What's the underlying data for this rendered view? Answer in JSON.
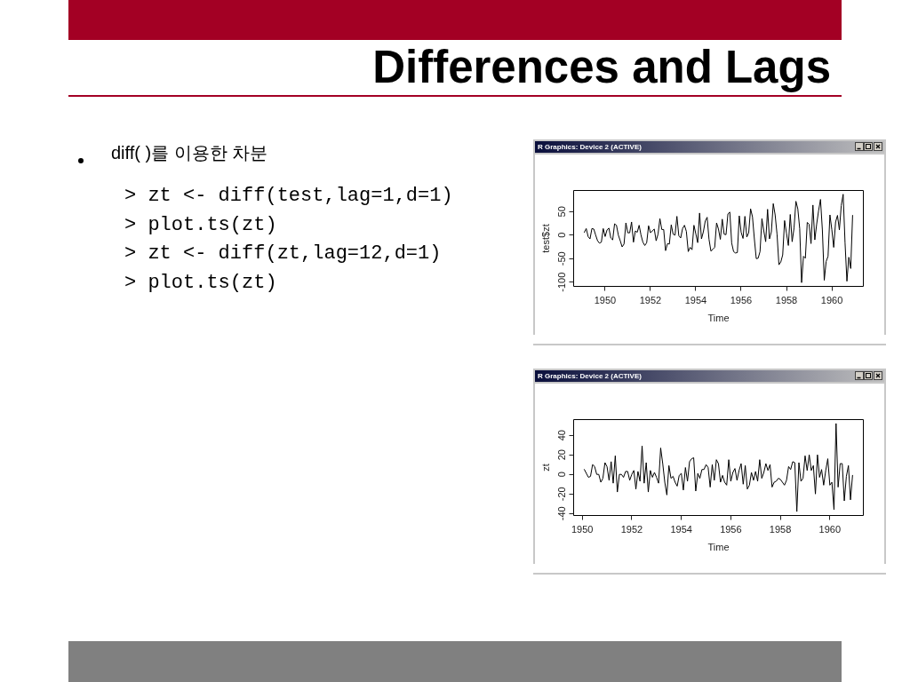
{
  "chart_data": [
    {
      "type": "other",
      "title": "Differences and Lags",
      "annotations": [
        "diff( )를 이용한 차분",
        "> zt <- diff(test,lag=1,d=1)",
        "> plot.ts(zt)",
        "> zt <- diff(zt,lag=12,d=1)",
        "> plot.ts(zt)"
      ]
    },
    {
      "type": "line",
      "title": "R Graphics: Device 2 (ACTIVE)",
      "xlabel": "Time",
      "ylabel": "test$zt",
      "color": "#000000",
      "marker": "none",
      "line_style": "solid",
      "xlim": [
        "1948-08-11",
        "1961-05-22"
      ],
      "ylim": [
        -109,
        95
      ],
      "xticks": [
        "1950",
        "1952",
        "1954",
        "1956",
        "1958",
        "1960"
      ],
      "yticks": [
        -100,
        -50,
        0,
        50
      ],
      "x": [
        "1949-02",
        "1949-03",
        "1949-04",
        "1949-05",
        "1949-06",
        "1949-07",
        "1949-08",
        "1949-09",
        "1949-10",
        "1949-11",
        "1949-12",
        "1950-01",
        "1950-02",
        "1950-03",
        "1950-04",
        "1950-05",
        "1950-06",
        "1950-07",
        "1950-08",
        "1950-09",
        "1950-10",
        "1950-11",
        "1950-12",
        "1951-01",
        "1951-02",
        "1951-03",
        "1951-04",
        "1951-05",
        "1951-06",
        "1951-07",
        "1951-08",
        "1951-09",
        "1951-10",
        "1951-11",
        "1951-12",
        "1952-01",
        "1952-02",
        "1952-03",
        "1952-04",
        "1952-05",
        "1952-06",
        "1952-07",
        "1952-08",
        "1952-09",
        "1952-10",
        "1952-11",
        "1952-12",
        "1953-01",
        "1953-02",
        "1953-03",
        "1953-04",
        "1953-05",
        "1953-06",
        "1953-07",
        "1953-08",
        "1953-09",
        "1953-10",
        "1953-11",
        "1953-12",
        "1954-01",
        "1954-02",
        "1954-03",
        "1954-04",
        "1954-05",
        "1954-06",
        "1954-07",
        "1954-08",
        "1954-09",
        "1954-10",
        "1954-11",
        "1954-12",
        "1955-01",
        "1955-02",
        "1955-03",
        "1955-04",
        "1955-05",
        "1955-06",
        "1955-07",
        "1955-08",
        "1955-09",
        "1955-10",
        "1955-11",
        "1955-12",
        "1956-01",
        "1956-02",
        "1956-03",
        "1956-04",
        "1956-05",
        "1956-06",
        "1956-07",
        "1956-08",
        "1956-09",
        "1956-10",
        "1956-11",
        "1956-12",
        "1957-01",
        "1957-02",
        "1957-03",
        "1957-04",
        "1957-05",
        "1957-06",
        "1957-07",
        "1957-08",
        "1957-09",
        "1957-10",
        "1957-11",
        "1957-12",
        "1958-01",
        "1958-02",
        "1958-03",
        "1958-04",
        "1958-05",
        "1958-06",
        "1958-07",
        "1958-08",
        "1958-09",
        "1958-10",
        "1958-11",
        "1958-12",
        "1959-01",
        "1959-02",
        "1959-03",
        "1959-04",
        "1959-05",
        "1959-06",
        "1959-07",
        "1959-08",
        "1959-09",
        "1959-10",
        "1959-11",
        "1959-12",
        "1960-01",
        "1960-02",
        "1960-03",
        "1960-04",
        "1960-05",
        "1960-06",
        "1960-07",
        "1960-08",
        "1960-09",
        "1960-10",
        "1960-11",
        "1960-12"
      ],
      "values": [
        6,
        14,
        -3,
        -8,
        14,
        13,
        0,
        -12,
        -17,
        -15,
        14,
        -3,
        11,
        15,
        -6,
        -10,
        24,
        21,
        0,
        -12,
        -25,
        -19,
        26,
        5,
        5,
        28,
        -15,
        9,
        6,
        21,
        0,
        -15,
        -22,
        -16,
        20,
        5,
        9,
        13,
        -12,
        2,
        35,
        12,
        12,
        -33,
        -18,
        -19,
        22,
        2,
        0,
        40,
        -1,
        -6,
        14,
        21,
        8,
        -35,
        -26,
        -31,
        21,
        3,
        -16,
        47,
        -8,
        7,
        30,
        38,
        -9,
        -34,
        -30,
        -26,
        26,
        13,
        -9,
        34,
        2,
        1,
        45,
        49,
        -17,
        -35,
        -38,
        -37,
        41,
        6,
        -7,
        40,
        -4,
        5,
        56,
        39,
        -8,
        -50,
        -49,
        -35,
        35,
        9,
        -14,
        55,
        -8,
        7,
        67,
        43,
        2,
        -63,
        -57,
        -42,
        31,
        4,
        -22,
        44,
        -14,
        15,
        72,
        56,
        14,
        -101,
        -45,
        -49,
        27,
        23,
        -18,
        64,
        -10,
        24,
        52,
        76,
        11,
        -96,
        -56,
        -45,
        43,
        12,
        -26,
        28,
        42,
        11,
        63,
        87,
        -16,
        -98,
        -47,
        -71,
        42
      ]
    },
    {
      "type": "line",
      "title": "R Graphics: Device 2 (ACTIVE)",
      "xlabel": "Time",
      "ylabel": "zt",
      "color": "#000000",
      "marker": "none",
      "line_style": "solid",
      "xlim": [
        "1949-08-26",
        "1961-05-08"
      ],
      "ylim": [
        -42,
        56
      ],
      "xticks": [
        "1950",
        "1952",
        "1954",
        "1956",
        "1958",
        "1960"
      ],
      "yticks": [
        -40,
        -20,
        0,
        20,
        40
      ],
      "x": [
        "1950-02",
        "1950-03",
        "1950-04",
        "1950-05",
        "1950-06",
        "1950-07",
        "1950-08",
        "1950-09",
        "1950-10",
        "1950-11",
        "1950-12",
        "1951-01",
        "1951-02",
        "1951-03",
        "1951-04",
        "1951-05",
        "1951-06",
        "1951-07",
        "1951-08",
        "1951-09",
        "1951-10",
        "1951-11",
        "1951-12",
        "1952-01",
        "1952-02",
        "1952-03",
        "1952-04",
        "1952-05",
        "1952-06",
        "1952-07",
        "1952-08",
        "1952-09",
        "1952-10",
        "1952-11",
        "1952-12",
        "1953-01",
        "1953-02",
        "1953-03",
        "1953-04",
        "1953-05",
        "1953-06",
        "1953-07",
        "1953-08",
        "1953-09",
        "1953-10",
        "1953-11",
        "1953-12",
        "1954-01",
        "1954-02",
        "1954-03",
        "1954-04",
        "1954-05",
        "1954-06",
        "1954-07",
        "1954-08",
        "1954-09",
        "1954-10",
        "1954-11",
        "1954-12",
        "1955-01",
        "1955-02",
        "1955-03",
        "1955-04",
        "1955-05",
        "1955-06",
        "1955-07",
        "1955-08",
        "1955-09",
        "1955-10",
        "1955-11",
        "1955-12",
        "1956-01",
        "1956-02",
        "1956-03",
        "1956-04",
        "1956-05",
        "1956-06",
        "1956-07",
        "1956-08",
        "1956-09",
        "1956-10",
        "1956-11",
        "1956-12",
        "1957-01",
        "1957-02",
        "1957-03",
        "1957-04",
        "1957-05",
        "1957-06",
        "1957-07",
        "1957-08",
        "1957-09",
        "1957-10",
        "1957-11",
        "1957-12",
        "1958-01",
        "1958-02",
        "1958-03",
        "1958-04",
        "1958-05",
        "1958-06",
        "1958-07",
        "1958-08",
        "1958-09",
        "1958-10",
        "1958-11",
        "1958-12",
        "1959-01",
        "1959-02",
        "1959-03",
        "1959-04",
        "1959-05",
        "1959-06",
        "1959-07",
        "1959-08",
        "1959-09",
        "1959-10",
        "1959-11",
        "1959-12",
        "1960-01",
        "1960-02",
        "1960-03",
        "1960-04",
        "1960-05",
        "1960-06",
        "1960-07",
        "1960-08",
        "1960-09",
        "1960-10",
        "1960-11",
        "1960-12"
      ],
      "values": [
        5,
        1,
        -3,
        -2,
        10,
        8,
        0,
        0,
        -8,
        -4,
        12,
        8,
        -6,
        13,
        -9,
        19,
        -18,
        0,
        0,
        -3,
        3,
        3,
        -6,
        0,
        4,
        -15,
        3,
        -7,
        29,
        -9,
        12,
        -18,
        4,
        -3,
        2,
        -3,
        -9,
        27,
        11,
        -8,
        -21,
        9,
        -4,
        -2,
        -8,
        -12,
        -1,
        1,
        -16,
        7,
        -7,
        13,
        16,
        17,
        -17,
        1,
        -4,
        5,
        5,
        10,
        7,
        -13,
        10,
        -6,
        15,
        11,
        -8,
        -1,
        -8,
        -11,
        15,
        -7,
        2,
        6,
        -6,
        4,
        11,
        -10,
        9,
        -15,
        -11,
        2,
        -6,
        3,
        -7,
        15,
        -4,
        2,
        11,
        4,
        10,
        -13,
        -8,
        -7,
        -4,
        -5,
        -8,
        -11,
        -6,
        8,
        5,
        13,
        12,
        -38,
        12,
        -7,
        -4,
        19,
        4,
        20,
        4,
        9,
        -20,
        20,
        -3,
        5,
        -11,
        4,
        16,
        -11,
        -8,
        -36,
        52,
        -13,
        11,
        11,
        -27,
        -2,
        9,
        -26,
        -1
      ]
    }
  ]
}
